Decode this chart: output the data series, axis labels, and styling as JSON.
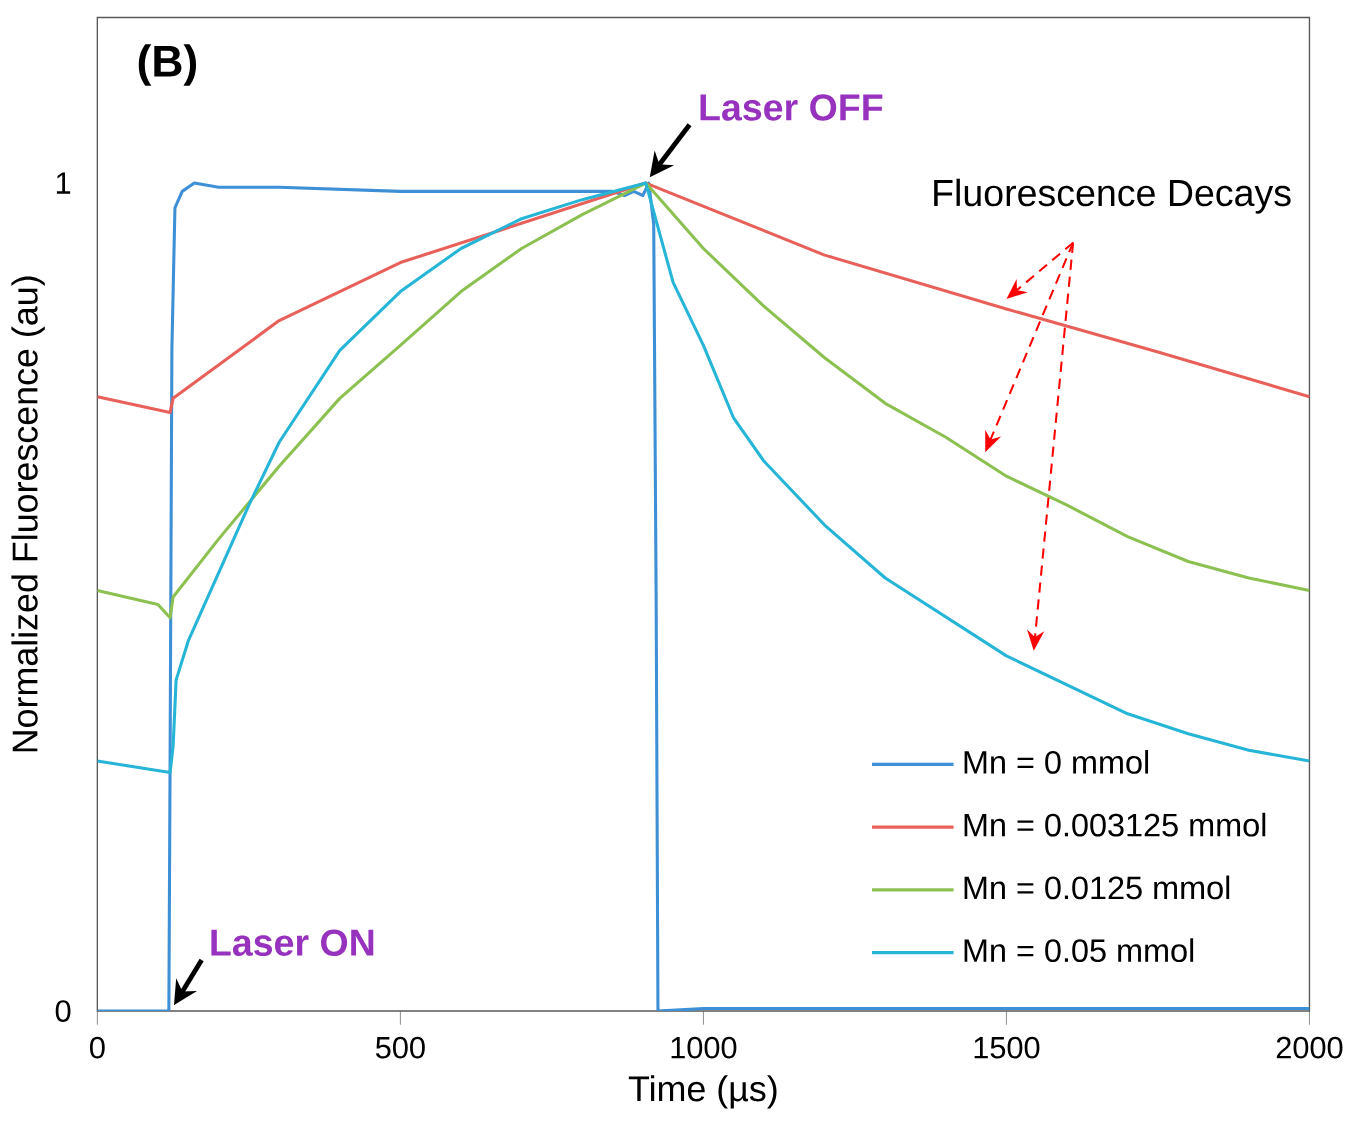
{
  "chart_data": {
    "type": "line",
    "xlabel": "Time (µs)",
    "ylabel": "Normalized Fluorescence (au)",
    "xlim": [
      0,
      2000
    ],
    "ylim": [
      0,
      1.2
    ],
    "xticks": [
      0,
      500,
      1000,
      1500,
      2000
    ],
    "yticks": [
      0,
      1
    ],
    "legend": "bottom right",
    "grid": false,
    "marker": "none",
    "line_style": "solid",
    "annotations": [
      "(B)",
      {
        "text": "Laser OFF",
        "x": 905,
        "y": 1
      },
      {
        "text": "Laser ON",
        "x": 120,
        "y": 0
      },
      "Fluorescence Decays"
    ],
    "series": [
      {
        "name": "Mn = 0 mmol",
        "color": "#3d8fd6",
        "x": [
          0,
          118,
          120,
          123,
          128,
          140,
          160,
          200,
          300,
          500,
          700,
          850,
          870,
          885,
          900,
          910,
          918,
          922,
          925,
          1000,
          2000
        ],
        "values": [
          0,
          0,
          0.3,
          0.8,
          0.97,
          0.99,
          1.0,
          0.995,
          0.995,
          0.99,
          0.99,
          0.99,
          0.985,
          0.99,
          0.985,
          1.0,
          0.95,
          0.5,
          0,
          0.003,
          0.003
        ]
      },
      {
        "name": "Mn = 0.003125 mmol",
        "color": "#e8605a",
        "x": [
          0,
          120,
          125,
          300,
          500,
          905,
          1200,
          1500,
          1750,
          2000
        ],
        "values": [
          0.742,
          0.723,
          0.74,
          0.834,
          0.904,
          1.0,
          0.913,
          0.848,
          0.796,
          0.742
        ]
      },
      {
        "name": "Mn = 0.0125 mmol",
        "color": "#8cc152",
        "x": [
          0,
          100,
          120,
          125,
          200,
          300,
          400,
          500,
          600,
          700,
          800,
          905,
          1000,
          1100,
          1200,
          1300,
          1400,
          1500,
          1600,
          1700,
          1800,
          1900,
          2000
        ],
        "values": [
          0.508,
          0.491,
          0.475,
          0.5,
          0.57,
          0.658,
          0.74,
          0.804,
          0.869,
          0.921,
          0.962,
          1.0,
          0.921,
          0.851,
          0.789,
          0.734,
          0.693,
          0.646,
          0.611,
          0.573,
          0.543,
          0.523,
          0.508
        ]
      },
      {
        "name": "Mn = 0.05 mmol",
        "color": "#26b5d6",
        "x": [
          0,
          120,
          125,
          130,
          150,
          200,
          250,
          300,
          400,
          500,
          600,
          700,
          800,
          905,
          950,
          1000,
          1050,
          1100,
          1200,
          1300,
          1400,
          1500,
          1600,
          1700,
          1800,
          1900,
          2000
        ],
        "values": [
          0.302,
          0.288,
          0.32,
          0.4,
          0.447,
          0.529,
          0.611,
          0.687,
          0.798,
          0.869,
          0.921,
          0.957,
          0.98,
          1.0,
          0.88,
          0.804,
          0.716,
          0.664,
          0.587,
          0.523,
          0.476,
          0.429,
          0.394,
          0.359,
          0.335,
          0.315,
          0.302
        ]
      }
    ]
  }
}
